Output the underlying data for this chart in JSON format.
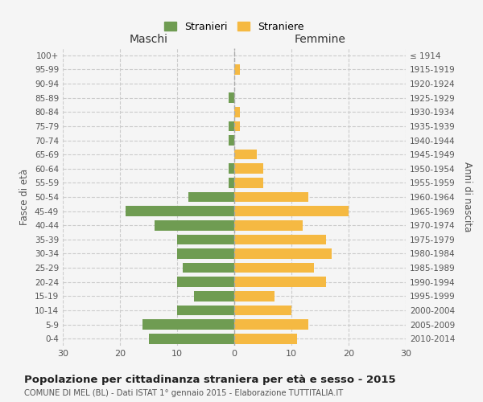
{
  "age_groups": [
    "0-4",
    "5-9",
    "10-14",
    "15-19",
    "20-24",
    "25-29",
    "30-34",
    "35-39",
    "40-44",
    "45-49",
    "50-54",
    "55-59",
    "60-64",
    "65-69",
    "70-74",
    "75-79",
    "80-84",
    "85-89",
    "90-94",
    "95-99",
    "100+"
  ],
  "birth_years": [
    "2010-2014",
    "2005-2009",
    "2000-2004",
    "1995-1999",
    "1990-1994",
    "1985-1989",
    "1980-1984",
    "1975-1979",
    "1970-1974",
    "1965-1969",
    "1960-1964",
    "1955-1959",
    "1950-1954",
    "1945-1949",
    "1940-1944",
    "1935-1939",
    "1930-1934",
    "1925-1929",
    "1920-1924",
    "1915-1919",
    "≤ 1914"
  ],
  "males": [
    15,
    16,
    10,
    7,
    10,
    9,
    10,
    10,
    14,
    19,
    8,
    1,
    1,
    0,
    1,
    1,
    0,
    1,
    0,
    0,
    0
  ],
  "females": [
    11,
    13,
    10,
    7,
    16,
    14,
    17,
    16,
    12,
    20,
    13,
    5,
    5,
    4,
    0,
    1,
    1,
    0,
    0,
    1,
    0
  ],
  "male_color": "#6f9c52",
  "female_color": "#f5b942",
  "background_color": "#f5f5f5",
  "grid_color": "#cccccc",
  "title": "Popolazione per cittadinanza straniera per età e sesso - 2015",
  "subtitle": "COMUNE DI MEL (BL) - Dati ISTAT 1° gennaio 2015 - Elaborazione TUTTITALIA.IT",
  "xlabel_left": "Maschi",
  "xlabel_right": "Femmine",
  "ylabel_left": "Fasce di età",
  "ylabel_right": "Anni di nascita",
  "legend_males": "Stranieri",
  "legend_females": "Straniere",
  "xlim": 30
}
